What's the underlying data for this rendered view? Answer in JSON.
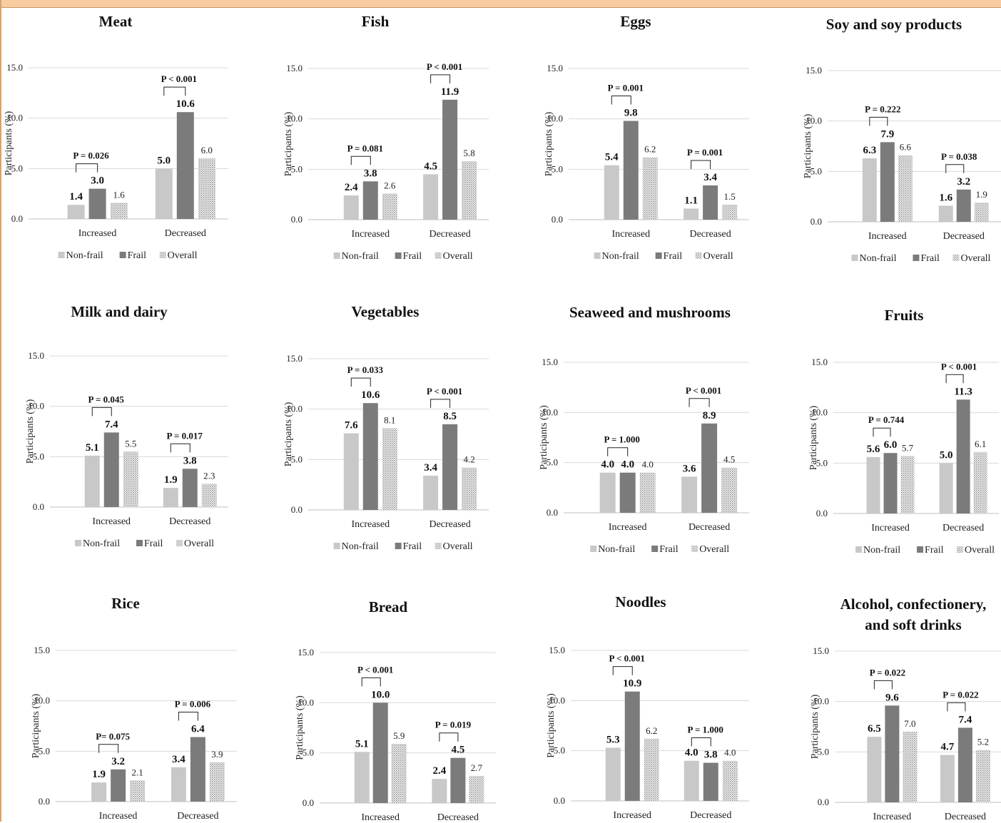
{
  "colors": {
    "nonfrail": "#c8c8c8",
    "frail": "#7b7b7b",
    "overall": "#dcdcdc",
    "grid": "#d9d9d9",
    "banner": "#f8cba0"
  },
  "legend": [
    "Non-frail",
    "Frail",
    "Overall"
  ],
  "y_axis_label": "Participants (%)",
  "y_ticks": [
    "0.0",
    "5.0",
    "10.0",
    "15.0"
  ],
  "categories": [
    "Increased",
    "Decreased"
  ],
  "chart_data": [
    {
      "type": "bar",
      "title": [
        "Meat"
      ],
      "ylim": [
        0,
        15
      ],
      "categories": [
        "Increased",
        "Decreased"
      ],
      "series": [
        {
          "name": "Non-frail",
          "values": [
            1.4,
            5.0
          ]
        },
        {
          "name": "Frail",
          "values": [
            3.0,
            10.6
          ]
        },
        {
          "name": "Overall",
          "values": [
            1.6,
            6.0
          ]
        }
      ],
      "p_values": [
        "P = 0.026",
        "P < 0.001"
      ]
    },
    {
      "type": "bar",
      "title": [
        "Fish"
      ],
      "ylim": [
        0,
        15
      ],
      "categories": [
        "Increased",
        "Decreased"
      ],
      "series": [
        {
          "name": "Non-frail",
          "values": [
            2.4,
            4.5
          ]
        },
        {
          "name": "Frail",
          "values": [
            3.8,
            11.9
          ]
        },
        {
          "name": "Overall",
          "values": [
            2.6,
            5.8
          ]
        }
      ],
      "p_values": [
        "P = 0.081",
        "P < 0.001"
      ]
    },
    {
      "type": "bar",
      "title": [
        "Eggs"
      ],
      "ylim": [
        0,
        15
      ],
      "categories": [
        "Increased",
        "Decreased"
      ],
      "series": [
        {
          "name": "Non-frail",
          "values": [
            5.4,
            1.1
          ]
        },
        {
          "name": "Frail",
          "values": [
            9.8,
            3.4
          ]
        },
        {
          "name": "Overall",
          "values": [
            6.2,
            1.5
          ]
        }
      ],
      "p_values": [
        "P = 0.001",
        "P = 0.001"
      ]
    },
    {
      "type": "bar",
      "title": [
        "Soy and soy products"
      ],
      "ylim": [
        0,
        15
      ],
      "categories": [
        "Increased",
        "Decreased"
      ],
      "series": [
        {
          "name": "Non-frail",
          "values": [
            6.3,
            1.6
          ]
        },
        {
          "name": "Frail",
          "values": [
            7.9,
            3.2
          ]
        },
        {
          "name": "Overall",
          "values": [
            6.6,
            1.9
          ]
        }
      ],
      "p_values": [
        "P = 0.222",
        "P = 0.038"
      ]
    },
    {
      "type": "bar",
      "title": [
        "Milk and dairy"
      ],
      "ylim": [
        0,
        15
      ],
      "categories": [
        "Increased",
        "Decreased"
      ],
      "series": [
        {
          "name": "Non-frail",
          "values": [
            5.1,
            1.9
          ]
        },
        {
          "name": "Frail",
          "values": [
            7.4,
            3.8
          ]
        },
        {
          "name": "Overall",
          "values": [
            5.5,
            2.3
          ]
        }
      ],
      "p_values": [
        "P = 0.045",
        "P = 0.017"
      ]
    },
    {
      "type": "bar",
      "title": [
        "Vegetables"
      ],
      "ylim": [
        0,
        15
      ],
      "categories": [
        "Increased",
        "Decreased"
      ],
      "series": [
        {
          "name": "Non-frail",
          "values": [
            7.6,
            3.4
          ]
        },
        {
          "name": "Frail",
          "values": [
            10.6,
            8.5
          ]
        },
        {
          "name": "Overall",
          "values": [
            8.1,
            4.2
          ]
        }
      ],
      "p_values": [
        "P = 0.033",
        "P < 0.001"
      ]
    },
    {
      "type": "bar",
      "title": [
        "Seaweed and mushrooms"
      ],
      "ylim": [
        0,
        15
      ],
      "categories": [
        "Increased",
        "Decreased"
      ],
      "series": [
        {
          "name": "Non-frail",
          "values": [
            4.0,
            3.6
          ]
        },
        {
          "name": "Frail",
          "values": [
            4.0,
            8.9
          ]
        },
        {
          "name": "Overall",
          "values": [
            4.0,
            4.5
          ]
        }
      ],
      "p_values": [
        "P = 1.000",
        "P < 0.001"
      ]
    },
    {
      "type": "bar",
      "title": [
        "Fruits"
      ],
      "ylim": [
        0,
        15
      ],
      "categories": [
        "Increased",
        "Decreased"
      ],
      "series": [
        {
          "name": "Non-frail",
          "values": [
            5.6,
            5.0
          ]
        },
        {
          "name": "Frail",
          "values": [
            6.0,
            11.3
          ]
        },
        {
          "name": "Overall",
          "values": [
            5.7,
            6.1
          ]
        }
      ],
      "p_values": [
        "P = 0.744",
        "P < 0.001"
      ]
    },
    {
      "type": "bar",
      "title": [
        "Rice"
      ],
      "ylim": [
        0,
        15
      ],
      "categories": [
        "Increased",
        "Decreased"
      ],
      "series": [
        {
          "name": "Non-frail",
          "values": [
            1.9,
            3.4
          ]
        },
        {
          "name": "Frail",
          "values": [
            3.2,
            6.4
          ]
        },
        {
          "name": "Overall",
          "values": [
            2.1,
            3.9
          ]
        }
      ],
      "p_values": [
        "P= 0.075",
        "P = 0.006"
      ]
    },
    {
      "type": "bar",
      "title": [
        "Bread"
      ],
      "ylim": [
        0,
        15
      ],
      "categories": [
        "Increased",
        "Decreased"
      ],
      "series": [
        {
          "name": "Non-frail",
          "values": [
            5.1,
            2.4
          ]
        },
        {
          "name": "Frail",
          "values": [
            10.0,
            4.5
          ]
        },
        {
          "name": "Overall",
          "values": [
            5.9,
            2.7
          ]
        }
      ],
      "p_values": [
        "P < 0.001",
        "P = 0.019"
      ]
    },
    {
      "type": "bar",
      "title": [
        "Noodles"
      ],
      "ylim": [
        0,
        15
      ],
      "categories": [
        "Increased",
        "Decreased"
      ],
      "series": [
        {
          "name": "Non-frail",
          "values": [
            5.3,
            4.0
          ]
        },
        {
          "name": "Frail",
          "values": [
            10.9,
            3.8
          ]
        },
        {
          "name": "Overall",
          "values": [
            6.2,
            4.0
          ]
        }
      ],
      "p_values": [
        "P < 0.001",
        "P = 1.000"
      ]
    },
    {
      "type": "bar",
      "title": [
        "Alcohol, confectionery,",
        "and soft drinks"
      ],
      "ylim": [
        0,
        15
      ],
      "categories": [
        "Increased",
        "Decreased"
      ],
      "series": [
        {
          "name": "Non-frail",
          "values": [
            6.5,
            4.7
          ]
        },
        {
          "name": "Frail",
          "values": [
            9.6,
            7.4
          ]
        },
        {
          "name": "Overall",
          "values": [
            7.0,
            5.2
          ]
        }
      ],
      "p_values": [
        "P = 0.022",
        "P = 0.022"
      ]
    }
  ]
}
